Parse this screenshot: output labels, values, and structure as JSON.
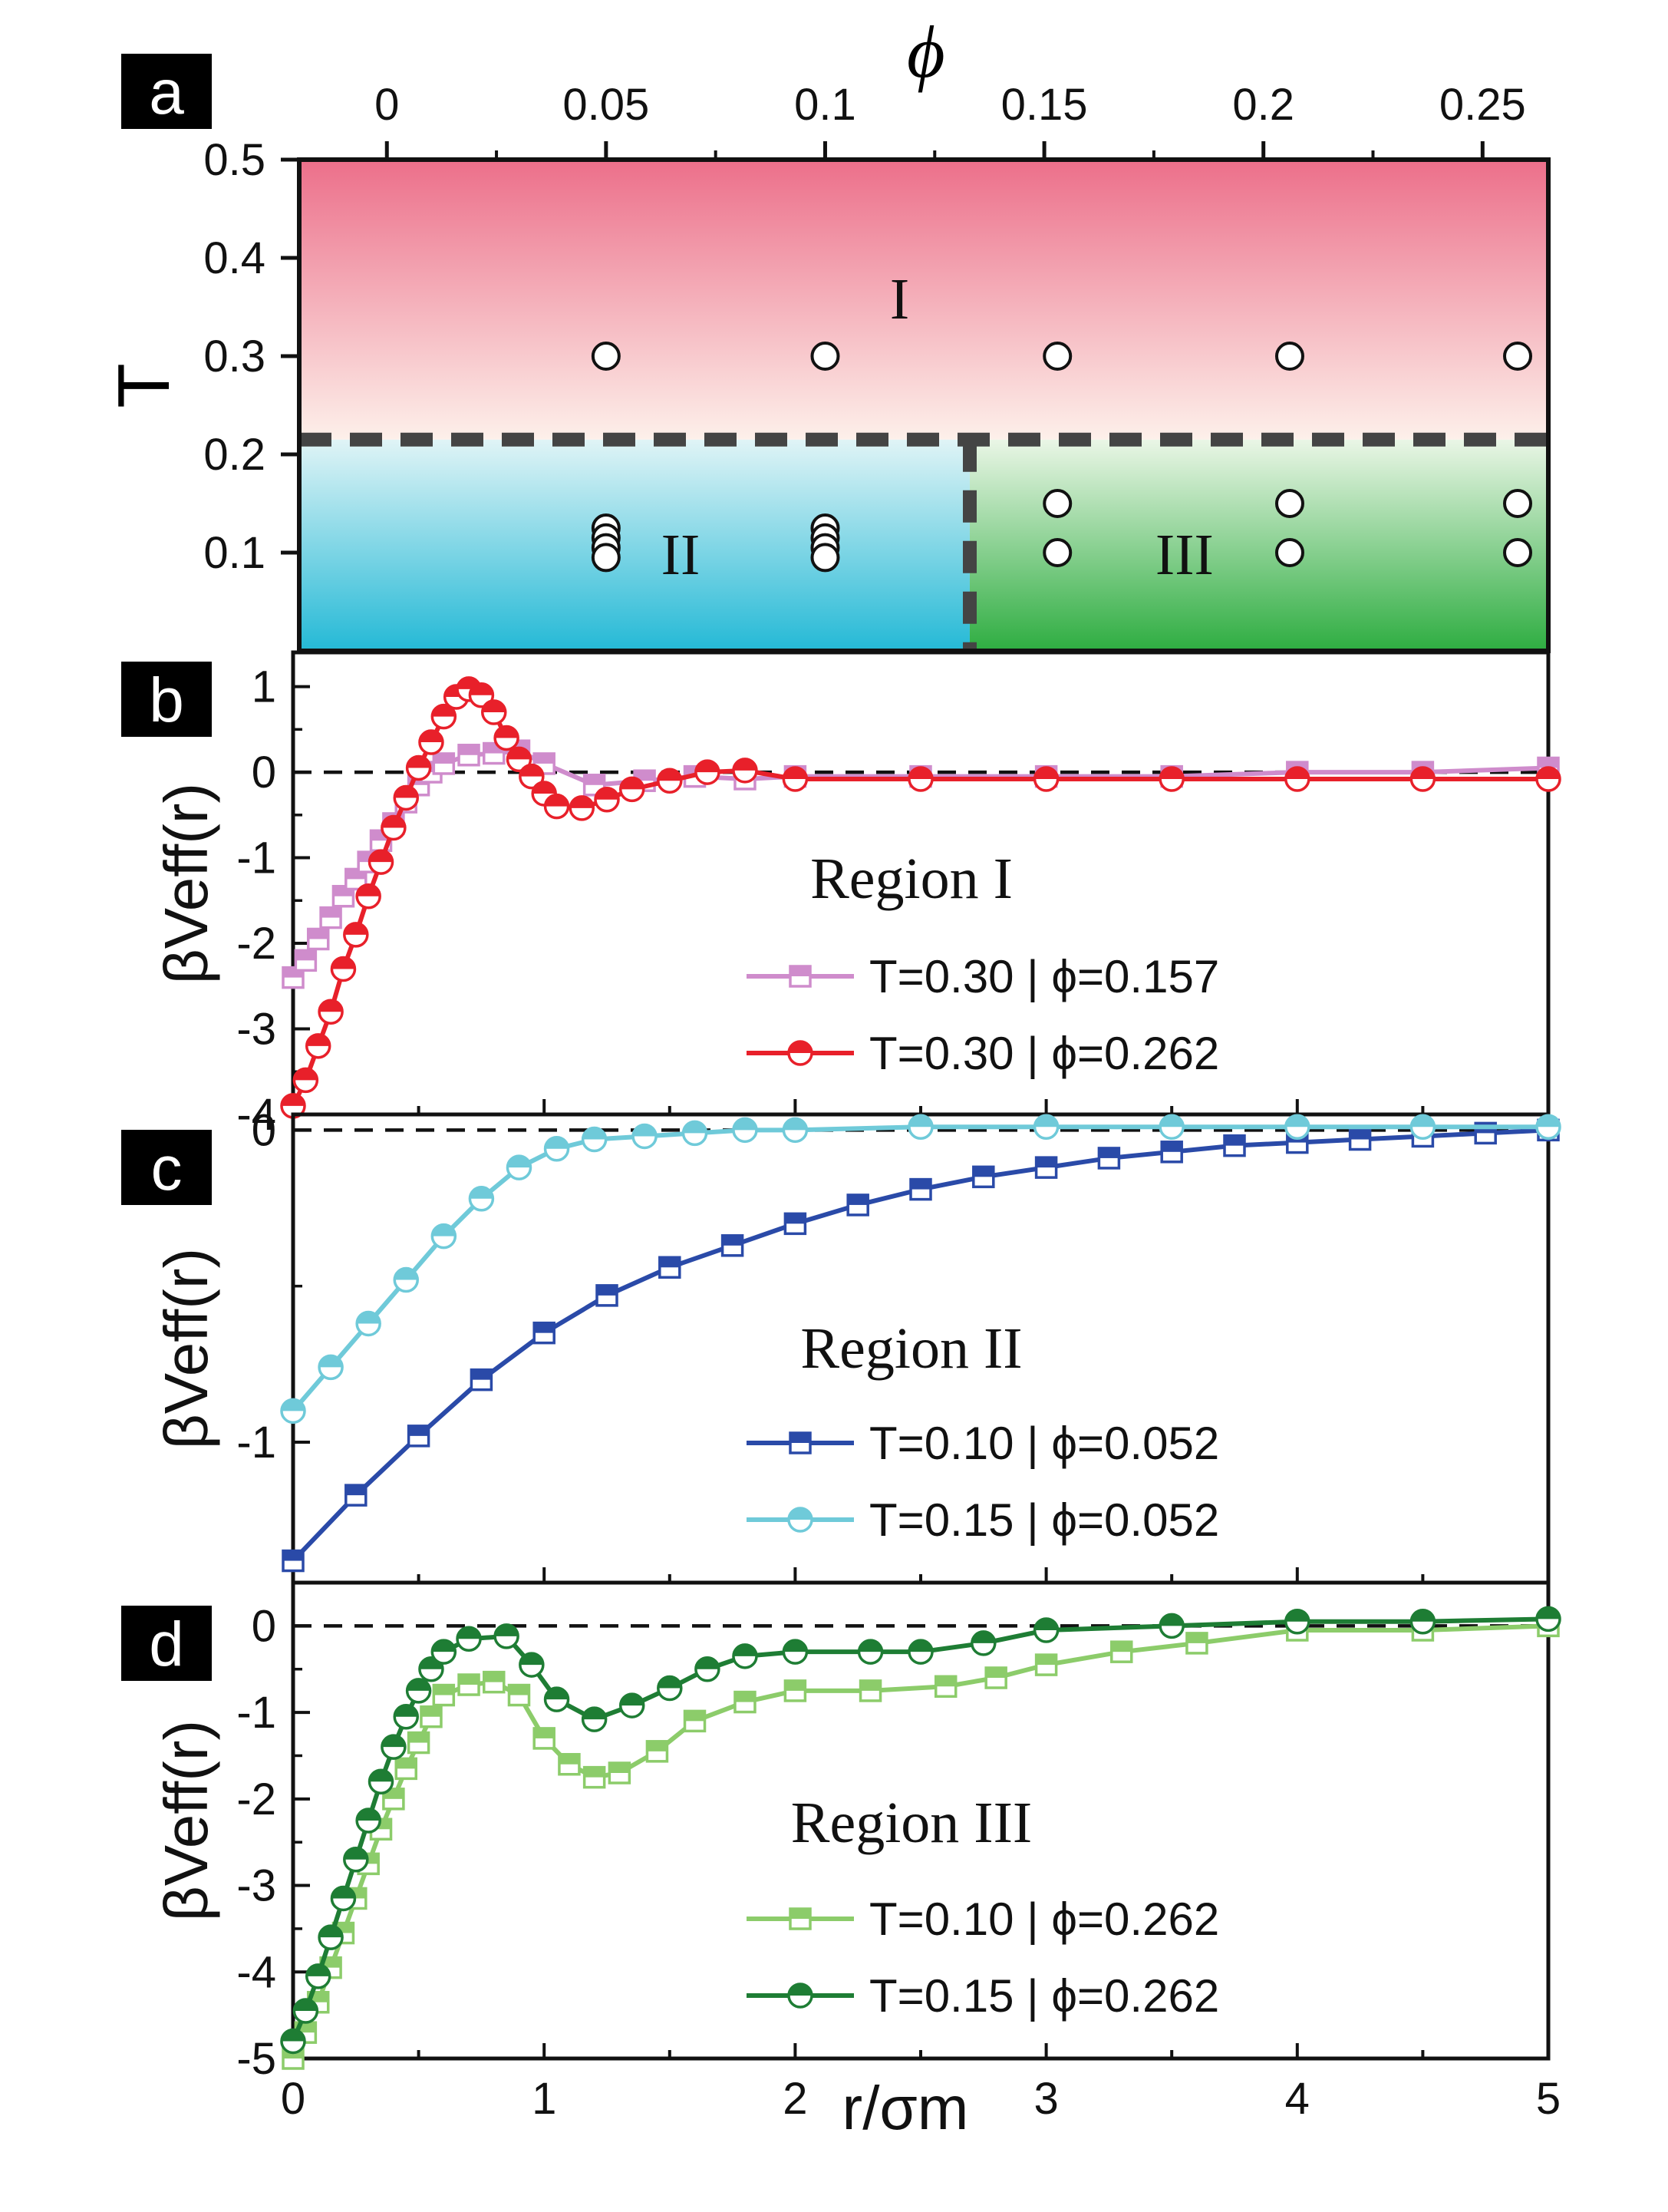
{
  "panels": [
    {
      "id": "a",
      "label": "a"
    },
    {
      "id": "b",
      "label": "b"
    },
    {
      "id": "c",
      "label": "c"
    },
    {
      "id": "d",
      "label": "d"
    }
  ],
  "colors": {
    "region_I_top": "#ec6f8a",
    "region_I_bottom": "#fdf0ea",
    "region_II_top": "#e0f4f6",
    "region_II_bottom": "#24b9d6",
    "region_III_top": "#eaf6e6",
    "region_III_bottom": "#2ead41"
  },
  "chart_data": [
    {
      "panel": "a",
      "type": "scatter",
      "xlabel": "ϕ",
      "ylabel": "T",
      "xlim": [
        -0.02,
        0.265
      ],
      "ylim": [
        0,
        0.5
      ],
      "xticks": [
        "0",
        "0.05",
        "0.1",
        "0.15",
        "0.2",
        "0.25"
      ],
      "yticks": [
        "0.1",
        "0.2",
        "0.3",
        "0.4",
        "0.5"
      ],
      "regions": [
        {
          "label": "I",
          "phi_range": [
            -0.02,
            0.265
          ],
          "T_range": [
            0.215,
            0.5
          ]
        },
        {
          "label": "II",
          "phi_range": [
            -0.02,
            0.133
          ],
          "T_range": [
            0,
            0.215
          ]
        },
        {
          "label": "III",
          "phi_range": [
            0.133,
            0.265
          ],
          "T_range": [
            0,
            0.215
          ]
        }
      ],
      "boundaries": {
        "T": 0.215,
        "phi": 0.133
      },
      "points": [
        {
          "phi": 0.05,
          "T": 0.3
        },
        {
          "phi": 0.1,
          "T": 0.3
        },
        {
          "phi": 0.153,
          "T": 0.3
        },
        {
          "phi": 0.206,
          "T": 0.3
        },
        {
          "phi": 0.258,
          "T": 0.3
        },
        {
          "phi": 0.05,
          "T": 0.125
        },
        {
          "phi": 0.05,
          "T": 0.115
        },
        {
          "phi": 0.05,
          "T": 0.105
        },
        {
          "phi": 0.05,
          "T": 0.095
        },
        {
          "phi": 0.1,
          "T": 0.125
        },
        {
          "phi": 0.1,
          "T": 0.115
        },
        {
          "phi": 0.1,
          "T": 0.105
        },
        {
          "phi": 0.1,
          "T": 0.095
        },
        {
          "phi": 0.153,
          "T": 0.15
        },
        {
          "phi": 0.153,
          "T": 0.1
        },
        {
          "phi": 0.206,
          "T": 0.15
        },
        {
          "phi": 0.206,
          "T": 0.1
        },
        {
          "phi": 0.258,
          "T": 0.15
        },
        {
          "phi": 0.258,
          "T": 0.1
        }
      ]
    },
    {
      "panel": "b",
      "type": "line",
      "ylabel": "βVeff(r)",
      "xlim": [
        0,
        5
      ],
      "ylim": [
        -4,
        1.4
      ],
      "yticks": [
        "1",
        "0",
        "-1",
        "-2",
        "-3",
        "-4"
      ],
      "title": "Region I",
      "series": [
        {
          "name": "T=0.30 | ϕ=0.157",
          "color": "#cf8ccc",
          "marker": "square",
          "x": [
            0,
            0.05,
            0.1,
            0.15,
            0.2,
            0.25,
            0.3,
            0.35,
            0.4,
            0.45,
            0.5,
            0.55,
            0.6,
            0.7,
            0.8,
            0.9,
            1.0,
            1.2,
            1.4,
            1.6,
            1.8,
            2.0,
            2.5,
            3.0,
            3.5,
            4.0,
            4.5,
            5.0
          ],
          "values": [
            -2.4,
            -2.2,
            -1.95,
            -1.7,
            -1.45,
            -1.25,
            -1.05,
            -0.8,
            -0.6,
            -0.35,
            -0.15,
            0.0,
            0.1,
            0.2,
            0.22,
            0.25,
            0.1,
            -0.15,
            -0.1,
            -0.05,
            -0.08,
            -0.05,
            -0.05,
            -0.05,
            -0.05,
            0.0,
            0.0,
            0.05
          ]
        },
        {
          "name": "T=0.30 | ϕ=0.262",
          "color": "#e8202a",
          "marker": "circle",
          "x": [
            0,
            0.05,
            0.1,
            0.15,
            0.2,
            0.25,
            0.3,
            0.35,
            0.4,
            0.45,
            0.5,
            0.55,
            0.6,
            0.65,
            0.7,
            0.75,
            0.8,
            0.85,
            0.9,
            0.95,
            1.0,
            1.05,
            1.15,
            1.25,
            1.35,
            1.5,
            1.65,
            1.8,
            2.0,
            2.5,
            3.0,
            3.5,
            4.0,
            4.5,
            5.0
          ],
          "values": [
            -3.9,
            -3.6,
            -3.2,
            -2.8,
            -2.3,
            -1.9,
            -1.45,
            -1.05,
            -0.65,
            -0.3,
            0.05,
            0.35,
            0.65,
            0.88,
            0.97,
            0.9,
            0.7,
            0.4,
            0.15,
            -0.05,
            -0.25,
            -0.4,
            -0.42,
            -0.32,
            -0.2,
            -0.1,
            0.0,
            0.02,
            -0.08,
            -0.08,
            -0.08,
            -0.08,
            -0.08,
            -0.08,
            -0.08
          ]
        }
      ]
    },
    {
      "panel": "c",
      "type": "line",
      "ylabel": "βVeff(r)",
      "xlim": [
        0,
        5
      ],
      "ylim": [
        -1.45,
        0.05
      ],
      "yticks": [
        "0",
        "-1"
      ],
      "title": "Region II",
      "series": [
        {
          "name": "T=0.10 | ϕ=0.052",
          "color": "#2a4aa8",
          "marker": "square",
          "x": [
            0,
            0.25,
            0.5,
            0.75,
            1.0,
            1.25,
            1.5,
            1.75,
            2.0,
            2.25,
            2.5,
            2.75,
            3.0,
            3.25,
            3.5,
            3.75,
            4.0,
            4.25,
            4.5,
            4.75,
            5.0
          ],
          "values": [
            -1.38,
            -1.17,
            -0.98,
            -0.8,
            -0.65,
            -0.53,
            -0.44,
            -0.37,
            -0.3,
            -0.24,
            -0.19,
            -0.15,
            -0.12,
            -0.09,
            -0.07,
            -0.05,
            -0.04,
            -0.03,
            -0.02,
            -0.01,
            0.0
          ]
        },
        {
          "name": "T=0.15 | ϕ=0.052",
          "color": "#6fcad9",
          "marker": "circle",
          "x": [
            0,
            0.15,
            0.3,
            0.45,
            0.6,
            0.75,
            0.9,
            1.05,
            1.2,
            1.4,
            1.6,
            1.8,
            2.0,
            2.5,
            3.0,
            3.5,
            4.0,
            4.5,
            5.0
          ],
          "values": [
            -0.9,
            -0.76,
            -0.62,
            -0.48,
            -0.34,
            -0.22,
            -0.12,
            -0.06,
            -0.03,
            -0.02,
            -0.01,
            0.0,
            0.0,
            0.01,
            0.01,
            0.01,
            0.01,
            0.01,
            0.01
          ]
        }
      ]
    },
    {
      "panel": "d",
      "type": "line",
      "ylabel": "βVeff(r)",
      "xlabel": "r/σm",
      "xlim": [
        0,
        5
      ],
      "ylim": [
        -5,
        0.5
      ],
      "xticks": [
        "0",
        "1",
        "2",
        "3",
        "4",
        "5"
      ],
      "yticks": [
        "0",
        "-1",
        "-2",
        "-3",
        "-4",
        "-5"
      ],
      "title": "Region III",
      "series": [
        {
          "name": "T=0.10 | ϕ=0.262",
          "color": "#8ccc6a",
          "marker": "square",
          "x": [
            0,
            0.05,
            0.1,
            0.15,
            0.2,
            0.25,
            0.3,
            0.35,
            0.4,
            0.45,
            0.5,
            0.55,
            0.6,
            0.7,
            0.8,
            0.9,
            1.0,
            1.1,
            1.2,
            1.3,
            1.45,
            1.6,
            1.8,
            2.0,
            2.3,
            2.6,
            2.8,
            3.0,
            3.3,
            3.6,
            4.0,
            4.5,
            5.0
          ],
          "values": [
            -5.0,
            -4.7,
            -4.35,
            -3.95,
            -3.55,
            -3.15,
            -2.75,
            -2.35,
            -2.0,
            -1.65,
            -1.35,
            -1.05,
            -0.8,
            -0.68,
            -0.65,
            -0.8,
            -1.3,
            -1.6,
            -1.75,
            -1.7,
            -1.45,
            -1.1,
            -0.88,
            -0.75,
            -0.75,
            -0.7,
            -0.6,
            -0.45,
            -0.3,
            -0.2,
            -0.05,
            -0.05,
            0.0
          ]
        },
        {
          "name": "T=0.15 | ϕ=0.262",
          "color": "#1e7d34",
          "marker": "circle",
          "x": [
            0,
            0.05,
            0.1,
            0.15,
            0.2,
            0.25,
            0.3,
            0.35,
            0.4,
            0.45,
            0.5,
            0.55,
            0.6,
            0.7,
            0.85,
            0.95,
            1.05,
            1.2,
            1.35,
            1.5,
            1.65,
            1.8,
            2.0,
            2.3,
            2.5,
            2.75,
            3.0,
            3.5,
            4.0,
            4.5,
            5.0
          ],
          "values": [
            -4.8,
            -4.45,
            -4.05,
            -3.6,
            -3.15,
            -2.7,
            -2.25,
            -1.8,
            -1.4,
            -1.05,
            -0.75,
            -0.5,
            -0.3,
            -0.15,
            -0.12,
            -0.45,
            -0.85,
            -1.08,
            -0.92,
            -0.72,
            -0.5,
            -0.35,
            -0.3,
            -0.3,
            -0.3,
            -0.2,
            -0.05,
            0.0,
            0.05,
            0.05,
            0.08
          ]
        }
      ]
    }
  ]
}
